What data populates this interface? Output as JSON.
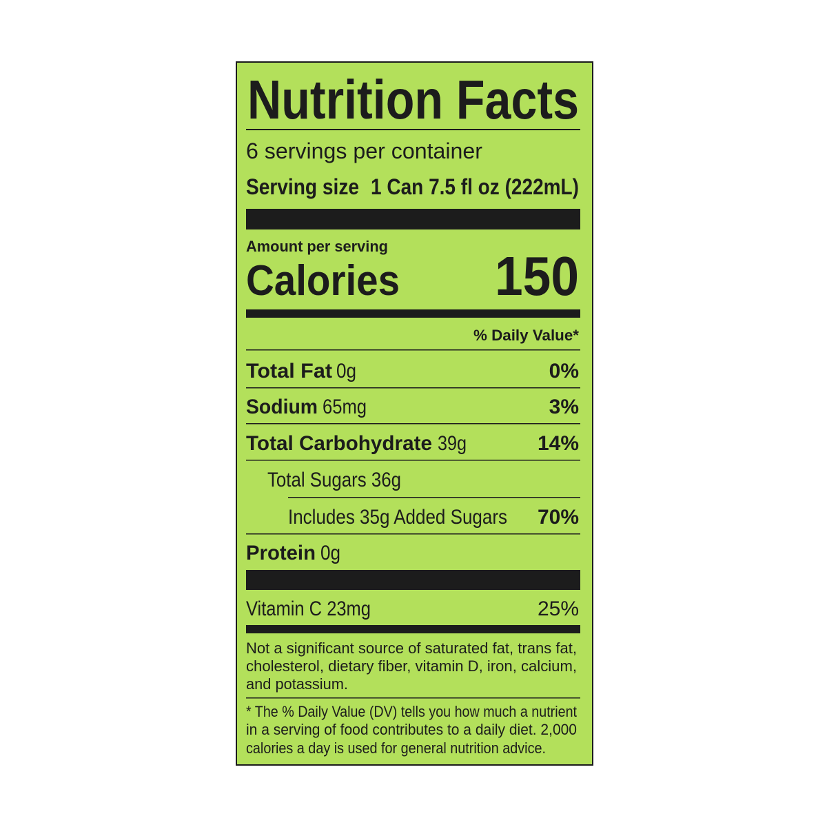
{
  "label": {
    "title": "Nutrition Facts",
    "servings_per_container": "6 servings per container",
    "serving_size": {
      "label": "Serving size",
      "value": "1 Can 7.5 fl oz (222mL)"
    },
    "amount_per_serving": "Amount per serving",
    "calories": {
      "label": "Calories",
      "value": "150"
    },
    "daily_value_header": "% Daily Value*",
    "nutrients": [
      {
        "name": "Total Fat",
        "amount": "0g",
        "daily_value": "0%"
      },
      {
        "name": "Sodium",
        "amount": "65mg",
        "daily_value": "3%"
      },
      {
        "name": "Total Carbohydrate",
        "amount": "39g",
        "daily_value": "14%"
      },
      {
        "text": "Total Sugars 36g"
      },
      {
        "text": "Includes 35g Added Sugars",
        "daily_value": "70%"
      },
      {
        "name": "Protein",
        "amount": "0g"
      }
    ],
    "vitamins": [
      {
        "text": "Vitamin C 23mg",
        "daily_value": "25%"
      }
    ],
    "footnotes": [
      [
        "Not a significant source of saturated fat, trans fat,",
        "cholesterol, dietary fiber, vitamin D, iron, calcium,",
        "and potassium."
      ],
      [
        "* The % Daily Value (DV) tells you how much a nutrient",
        "in a serving of food contributes to a daily diet. 2,000",
        "calories a day is used for general nutrition advice."
      ]
    ]
  }
}
